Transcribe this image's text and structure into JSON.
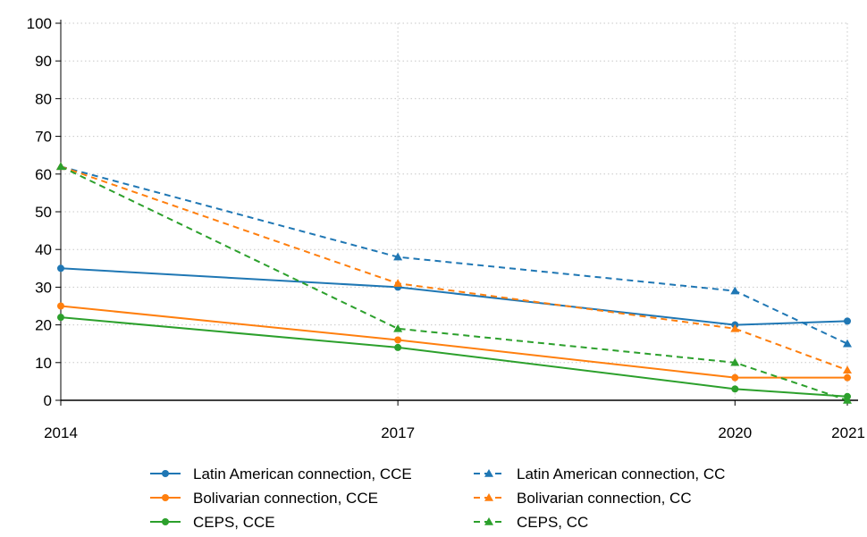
{
  "chart_data": {
    "type": "line",
    "x": [
      2014,
      2017,
      2020,
      2021
    ],
    "xticks": [
      "2014",
      "2017",
      "2020",
      "2021"
    ],
    "ylim": [
      0,
      100
    ],
    "yticks": [
      "0",
      "10",
      "20",
      "30",
      "40",
      "50",
      "60",
      "70",
      "80",
      "90",
      "100"
    ],
    "grid": true,
    "legend_position": "bottom",
    "series": [
      {
        "name": "Latin American connection, CCE",
        "values": [
          35,
          30,
          20,
          21
        ],
        "color": "#1f77b4",
        "style": "solid",
        "marker": "circle"
      },
      {
        "name": "Latin American connection, CC",
        "values": [
          62,
          38,
          29,
          15
        ],
        "color": "#1f77b4",
        "style": "dashed",
        "marker": "triangle"
      },
      {
        "name": "Bolivarian connection, CCE",
        "values": [
          25,
          16,
          6,
          6
        ],
        "color": "#ff7f0e",
        "style": "solid",
        "marker": "circle"
      },
      {
        "name": "Bolivarian connection, CC",
        "values": [
          62,
          31,
          19,
          8
        ],
        "color": "#ff7f0e",
        "style": "dashed",
        "marker": "triangle"
      },
      {
        "name": "CEPS, CCE",
        "values": [
          22,
          14,
          3,
          1
        ],
        "color": "#2ca02c",
        "style": "solid",
        "marker": "circle"
      },
      {
        "name": "CEPS, CC",
        "values": [
          62,
          19,
          10,
          0
        ],
        "color": "#2ca02c",
        "style": "dashed",
        "marker": "triangle"
      }
    ]
  }
}
